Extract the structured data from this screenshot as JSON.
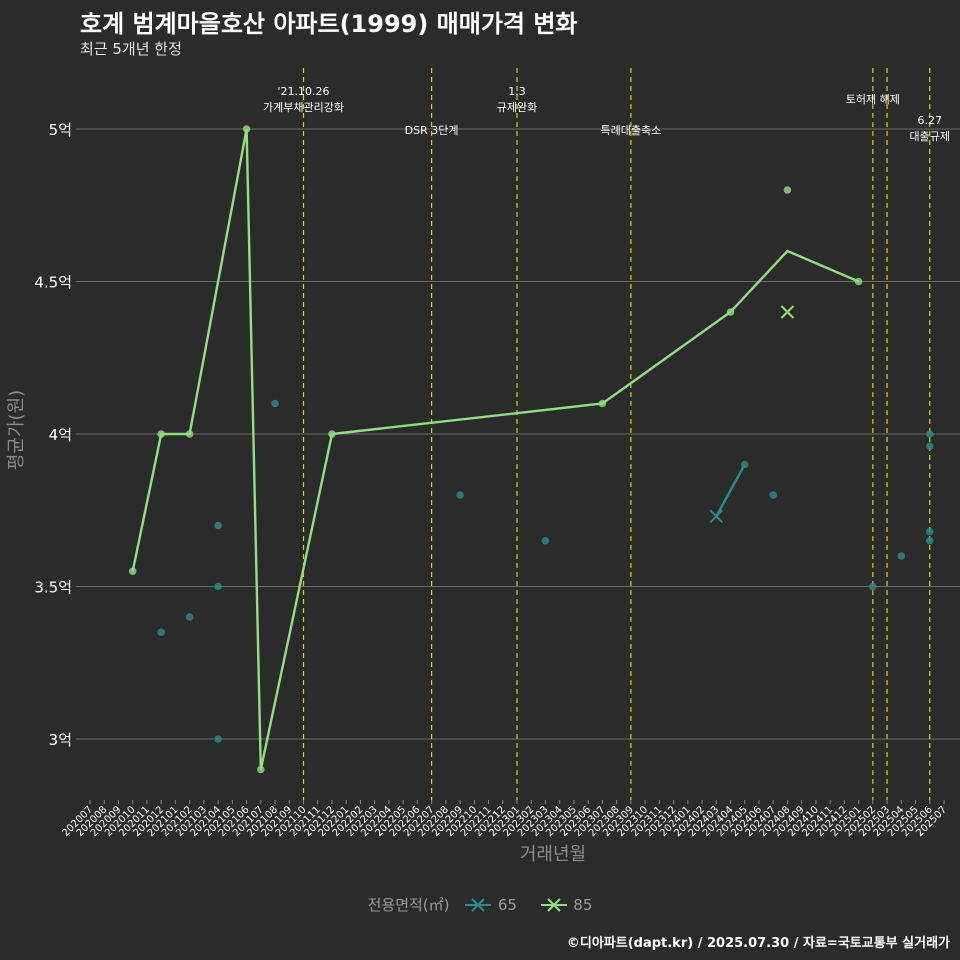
{
  "title": "호계 범계마을호산 아파트(1999) 매매가격 변화",
  "subtitle": "최근 5개년 한정",
  "caption": "©디아파트(dapt.kr) / 2025.07.30 / 자료=국토교통부 실거래가",
  "chart_data": {
    "type": "line",
    "xlabel": "거래년월",
    "ylabel": "평균가(원)",
    "categories": [
      "202007",
      "202008",
      "202009",
      "202010",
      "202011",
      "202012",
      "202101",
      "202102",
      "202103",
      "202104",
      "202105",
      "202106",
      "202107",
      "202108",
      "202109",
      "202110",
      "202111",
      "202112",
      "202201",
      "202202",
      "202203",
      "202204",
      "202205",
      "202206",
      "202207",
      "202208",
      "202209",
      "202210",
      "202211",
      "202212",
      "202301",
      "202302",
      "202303",
      "202304",
      "202305",
      "202306",
      "202307",
      "202308",
      "202309",
      "202310",
      "202311",
      "202312",
      "202401",
      "202402",
      "202403",
      "202404",
      "202405",
      "202406",
      "202407",
      "202408",
      "202409",
      "202410",
      "202411",
      "202412",
      "202501",
      "202502",
      "202503",
      "202504",
      "202505",
      "202506",
      "202507"
    ],
    "ylim": [
      2.8,
      5.2
    ],
    "yticks": [
      3,
      3.5,
      4,
      4.5,
      5
    ],
    "ytick_labels": [
      "3억",
      "3.5억",
      "4억",
      "4.5억",
      "5억"
    ],
    "grid": true,
    "legend": {
      "title": "전용면적(㎡)",
      "position": "bottom"
    },
    "series": [
      {
        "name": "65",
        "color": "#2a8c8c",
        "line": [
          {
            "x": "202403",
            "y": 3.73
          },
          {
            "x": "202405",
            "y": 3.9
          }
        ],
        "points": [
          {
            "x": "202012",
            "y": 3.35
          },
          {
            "x": "202102",
            "y": 3.4
          },
          {
            "x": "202104",
            "y": 3.7
          },
          {
            "x": "202104",
            "y": 3.5
          },
          {
            "x": "202104",
            "y": 3.0
          },
          {
            "x": "202108",
            "y": 4.1
          },
          {
            "x": "202209",
            "y": 3.8
          },
          {
            "x": "202303",
            "y": 3.65
          },
          {
            "x": "202405",
            "y": 3.9
          },
          {
            "x": "202407",
            "y": 3.8
          },
          {
            "x": "202502",
            "y": 3.5
          },
          {
            "x": "202504",
            "y": 3.6
          },
          {
            "x": "202506",
            "y": 4.0
          },
          {
            "x": "202506",
            "y": 3.96
          },
          {
            "x": "202506",
            "y": 3.68
          },
          {
            "x": "202506",
            "y": 3.65
          }
        ],
        "cross": [
          {
            "x": "202403",
            "y": 3.73
          }
        ]
      },
      {
        "name": "85",
        "color": "#90e080",
        "line": [
          {
            "x": "202010",
            "y": 3.55
          },
          {
            "x": "202012",
            "y": 4.0
          },
          {
            "x": "202102",
            "y": 4.0
          },
          {
            "x": "202106",
            "y": 5.0
          },
          {
            "x": "202107",
            "y": 2.9
          },
          {
            "x": "202112",
            "y": 4.0
          },
          {
            "x": "202307",
            "y": 4.1
          },
          {
            "x": "202404",
            "y": 4.4
          },
          {
            "x": "202408",
            "y": 4.6
          },
          {
            "x": "202501",
            "y": 4.5
          }
        ],
        "points": [
          {
            "x": "202010",
            "y": 3.55
          },
          {
            "x": "202012",
            "y": 4.0
          },
          {
            "x": "202102",
            "y": 4.0
          },
          {
            "x": "202106",
            "y": 5.0
          },
          {
            "x": "202107",
            "y": 2.9
          },
          {
            "x": "202112",
            "y": 4.0
          },
          {
            "x": "202307",
            "y": 4.1
          },
          {
            "x": "202404",
            "y": 4.4
          },
          {
            "x": "202408",
            "y": 4.8
          },
          {
            "x": "202501",
            "y": 4.5
          }
        ],
        "cross": [
          {
            "x": "202408",
            "y": 4.4
          }
        ]
      }
    ],
    "vlines": [
      {
        "x": "202110",
        "lines": [
          "'21.10.26",
          "가계부채관리강화"
        ],
        "level": "top"
      },
      {
        "x": "202207",
        "lines": [
          "DSR 3단계"
        ],
        "level": "low"
      },
      {
        "x": "202301",
        "lines": [
          "1.3",
          "규제완화"
        ],
        "level": "top"
      },
      {
        "x": "202309",
        "lines": [
          "특례대출축소"
        ],
        "level": "low"
      },
      {
        "x": "202502",
        "lines": [
          "토허제 해제"
        ],
        "level": "mid"
      },
      {
        "x": "202503",
        "lines": [],
        "level": "none"
      },
      {
        "x": "202506",
        "lines": [
          "6.27",
          "대출규제"
        ],
        "level": "low2"
      }
    ],
    "vline_color": "#d4d400",
    "grid_color": "#6a6a6a",
    "axis_text_color": "#ffffff",
    "axis_title_color": "#8a8a8a"
  }
}
